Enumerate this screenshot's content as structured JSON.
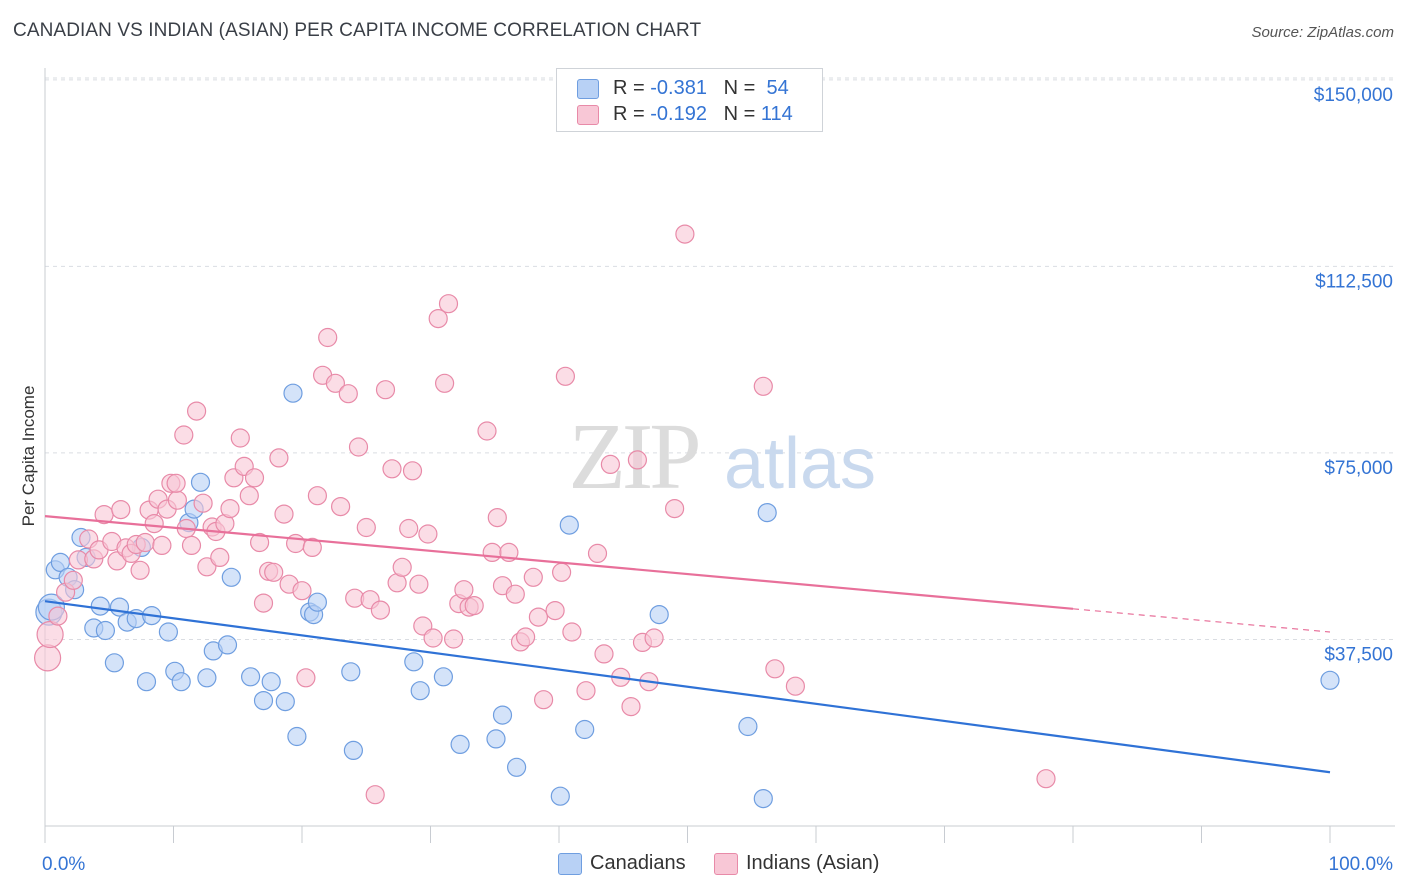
{
  "title": "CANADIAN VS INDIAN (ASIAN) PER CAPITA INCOME CORRELATION CHART",
  "source": "Source: ZipAtlas.com",
  "watermark": {
    "zip": "ZIP",
    "atlas": "atlas"
  },
  "legend": {
    "rows": [
      {
        "r_label": "R = ",
        "r_value": "-0.381",
        "n_label": "N = ",
        "n_value": "54",
        "fill": "#b8d1f5",
        "stroke": "#6f9ee0"
      },
      {
        "r_label": "R = ",
        "r_value": "-0.192",
        "n_label": "N = ",
        "n_value": "114",
        "fill": "#f8c7d6",
        "stroke": "#e88aa8"
      }
    ]
  },
  "bottom_legend": [
    {
      "label": "Canadians",
      "fill": "#b8d1f5",
      "stroke": "#6f9ee0"
    },
    {
      "label": "Indians (Asian)",
      "fill": "#f8c7d6",
      "stroke": "#e88aa8"
    }
  ],
  "chart_data": {
    "type": "scatter",
    "title": "CANADIAN VS INDIAN (ASIAN) PER CAPITA INCOME CORRELATION CHART",
    "xlabel": "",
    "ylabel": "Per Capita Income",
    "xlim": [
      0,
      100
    ],
    "ylim": [
      0,
      156000
    ],
    "x_tick_labels": [
      "0.0%",
      "100.0%"
    ],
    "y_ticks": [
      37500,
      75000,
      112500,
      150000
    ],
    "y_tick_labels": [
      "$37,500",
      "$75,000",
      "$112,500",
      "$150,000"
    ],
    "grid": true,
    "colors": {
      "blue": "#2f72d6",
      "pink": "#e8709a",
      "axis_text": "#3474d4"
    },
    "series": [
      {
        "name": "Canadians",
        "color": "#6f9ee0",
        "fill": "#b8d1f5",
        "trend": {
          "x": [
            0,
            100
          ],
          "y": [
            45200,
            10800
          ],
          "solid_to": 100
        },
        "points": [
          [
            0.3,
            43000
          ],
          [
            0.8,
            51500
          ],
          [
            1.2,
            53000
          ],
          [
            1.8,
            50000
          ],
          [
            2.3,
            47500
          ],
          [
            2.8,
            58000
          ],
          [
            3.2,
            54000
          ],
          [
            3.8,
            39800
          ],
          [
            4.3,
            44200
          ],
          [
            4.7,
            39300
          ],
          [
            5.4,
            32800
          ],
          [
            5.8,
            44000
          ],
          [
            6.4,
            41000
          ],
          [
            7.1,
            41700
          ],
          [
            7.5,
            56000
          ],
          [
            7.9,
            29000
          ],
          [
            8.3,
            42300
          ],
          [
            9.6,
            39000
          ],
          [
            10.1,
            31100
          ],
          [
            10.6,
            29000
          ],
          [
            11.2,
            61000
          ],
          [
            11.6,
            63700
          ],
          [
            12.1,
            69100
          ],
          [
            12.6,
            29800
          ],
          [
            13.1,
            35200
          ],
          [
            14.2,
            36400
          ],
          [
            14.5,
            50000
          ],
          [
            16.0,
            30000
          ],
          [
            17.0,
            25200
          ],
          [
            17.6,
            29000
          ],
          [
            18.7,
            25000
          ],
          [
            19.3,
            87000
          ],
          [
            19.6,
            18000
          ],
          [
            20.6,
            43000
          ],
          [
            20.9,
            42500
          ],
          [
            21.2,
            45000
          ],
          [
            23.8,
            31000
          ],
          [
            24.0,
            15200
          ],
          [
            28.7,
            33000
          ],
          [
            29.2,
            27200
          ],
          [
            31.0,
            30000
          ],
          [
            32.3,
            16400
          ],
          [
            35.1,
            17500
          ],
          [
            35.6,
            22300
          ],
          [
            36.7,
            11800
          ],
          [
            40.1,
            6000
          ],
          [
            40.8,
            60500
          ],
          [
            42.0,
            19400
          ],
          [
            47.8,
            42500
          ],
          [
            54.7,
            20000
          ],
          [
            55.9,
            5500
          ],
          [
            56.2,
            63000
          ],
          [
            100.0,
            29300
          ],
          [
            0.5,
            44000
          ]
        ]
      },
      {
        "name": "Indians (Asian)",
        "color": "#e88aa8",
        "fill": "#f8c7d6",
        "trend": {
          "x": [
            0,
            100
          ],
          "y": [
            62300,
            39000
          ],
          "solid_to": 80
        },
        "points": [
          [
            0.2,
            33800
          ],
          [
            0.4,
            38500
          ],
          [
            1.0,
            42200
          ],
          [
            1.6,
            47000
          ],
          [
            2.2,
            49400
          ],
          [
            2.6,
            53500
          ],
          [
            3.4,
            57700
          ],
          [
            3.8,
            53700
          ],
          [
            4.2,
            55500
          ],
          [
            4.6,
            62600
          ],
          [
            5.2,
            57200
          ],
          [
            5.6,
            53300
          ],
          [
            5.9,
            63600
          ],
          [
            6.3,
            55900
          ],
          [
            6.7,
            54800
          ],
          [
            7.1,
            56600
          ],
          [
            7.4,
            51400
          ],
          [
            7.8,
            57000
          ],
          [
            8.1,
            63500
          ],
          [
            8.5,
            60800
          ],
          [
            8.8,
            65700
          ],
          [
            9.1,
            56400
          ],
          [
            9.5,
            63700
          ],
          [
            9.8,
            68900
          ],
          [
            10.3,
            65500
          ],
          [
            10.8,
            78600
          ],
          [
            11.0,
            59800
          ],
          [
            11.4,
            56400
          ],
          [
            11.8,
            83400
          ],
          [
            12.3,
            64900
          ],
          [
            12.6,
            52100
          ],
          [
            13.0,
            60100
          ],
          [
            13.3,
            59200
          ],
          [
            13.6,
            54000
          ],
          [
            14.0,
            60800
          ],
          [
            14.4,
            63800
          ],
          [
            14.7,
            70000
          ],
          [
            15.2,
            78000
          ],
          [
            15.5,
            72300
          ],
          [
            15.9,
            66400
          ],
          [
            16.3,
            70000
          ],
          [
            16.7,
            57000
          ],
          [
            17.0,
            44800
          ],
          [
            17.4,
            51200
          ],
          [
            17.8,
            51000
          ],
          [
            18.2,
            74000
          ],
          [
            18.6,
            62700
          ],
          [
            19.0,
            48600
          ],
          [
            19.5,
            56800
          ],
          [
            20.0,
            47300
          ],
          [
            20.3,
            29800
          ],
          [
            20.8,
            56000
          ],
          [
            21.2,
            66400
          ],
          [
            21.6,
            90600
          ],
          [
            22.0,
            98200
          ],
          [
            22.6,
            89000
          ],
          [
            23.0,
            64200
          ],
          [
            23.6,
            86900
          ],
          [
            24.1,
            45800
          ],
          [
            24.4,
            76200
          ],
          [
            25.0,
            60000
          ],
          [
            25.3,
            45500
          ],
          [
            25.7,
            6300
          ],
          [
            26.1,
            43400
          ],
          [
            26.5,
            87700
          ],
          [
            27.0,
            71800
          ],
          [
            27.4,
            48900
          ],
          [
            27.8,
            52000
          ],
          [
            28.3,
            59800
          ],
          [
            28.6,
            71400
          ],
          [
            29.1,
            48600
          ],
          [
            29.4,
            40200
          ],
          [
            29.8,
            58700
          ],
          [
            30.2,
            37800
          ],
          [
            30.6,
            102000
          ],
          [
            31.1,
            89000
          ],
          [
            31.4,
            105000
          ],
          [
            31.8,
            37600
          ],
          [
            32.2,
            44700
          ],
          [
            32.6,
            47500
          ],
          [
            33.0,
            44000
          ],
          [
            33.4,
            44300
          ],
          [
            34.4,
            79400
          ],
          [
            34.8,
            55000
          ],
          [
            35.2,
            62000
          ],
          [
            35.6,
            48300
          ],
          [
            36.1,
            55000
          ],
          [
            36.6,
            46600
          ],
          [
            37.0,
            37000
          ],
          [
            37.4,
            38000
          ],
          [
            38.0,
            50000
          ],
          [
            38.4,
            42000
          ],
          [
            38.8,
            25400
          ],
          [
            39.7,
            43300
          ],
          [
            40.2,
            51000
          ],
          [
            40.5,
            90400
          ],
          [
            41.0,
            39000
          ],
          [
            42.1,
            27200
          ],
          [
            43.0,
            54800
          ],
          [
            43.5,
            34600
          ],
          [
            44.0,
            72700
          ],
          [
            44.8,
            29900
          ],
          [
            45.6,
            24000
          ],
          [
            46.1,
            73600
          ],
          [
            46.5,
            36900
          ],
          [
            47.0,
            29000
          ],
          [
            47.4,
            37800
          ],
          [
            49.0,
            63800
          ],
          [
            49.8,
            119000
          ],
          [
            55.9,
            88400
          ],
          [
            56.8,
            31600
          ],
          [
            58.4,
            28100
          ],
          [
            77.9,
            9500
          ],
          [
            10.2,
            68900
          ]
        ]
      }
    ]
  }
}
